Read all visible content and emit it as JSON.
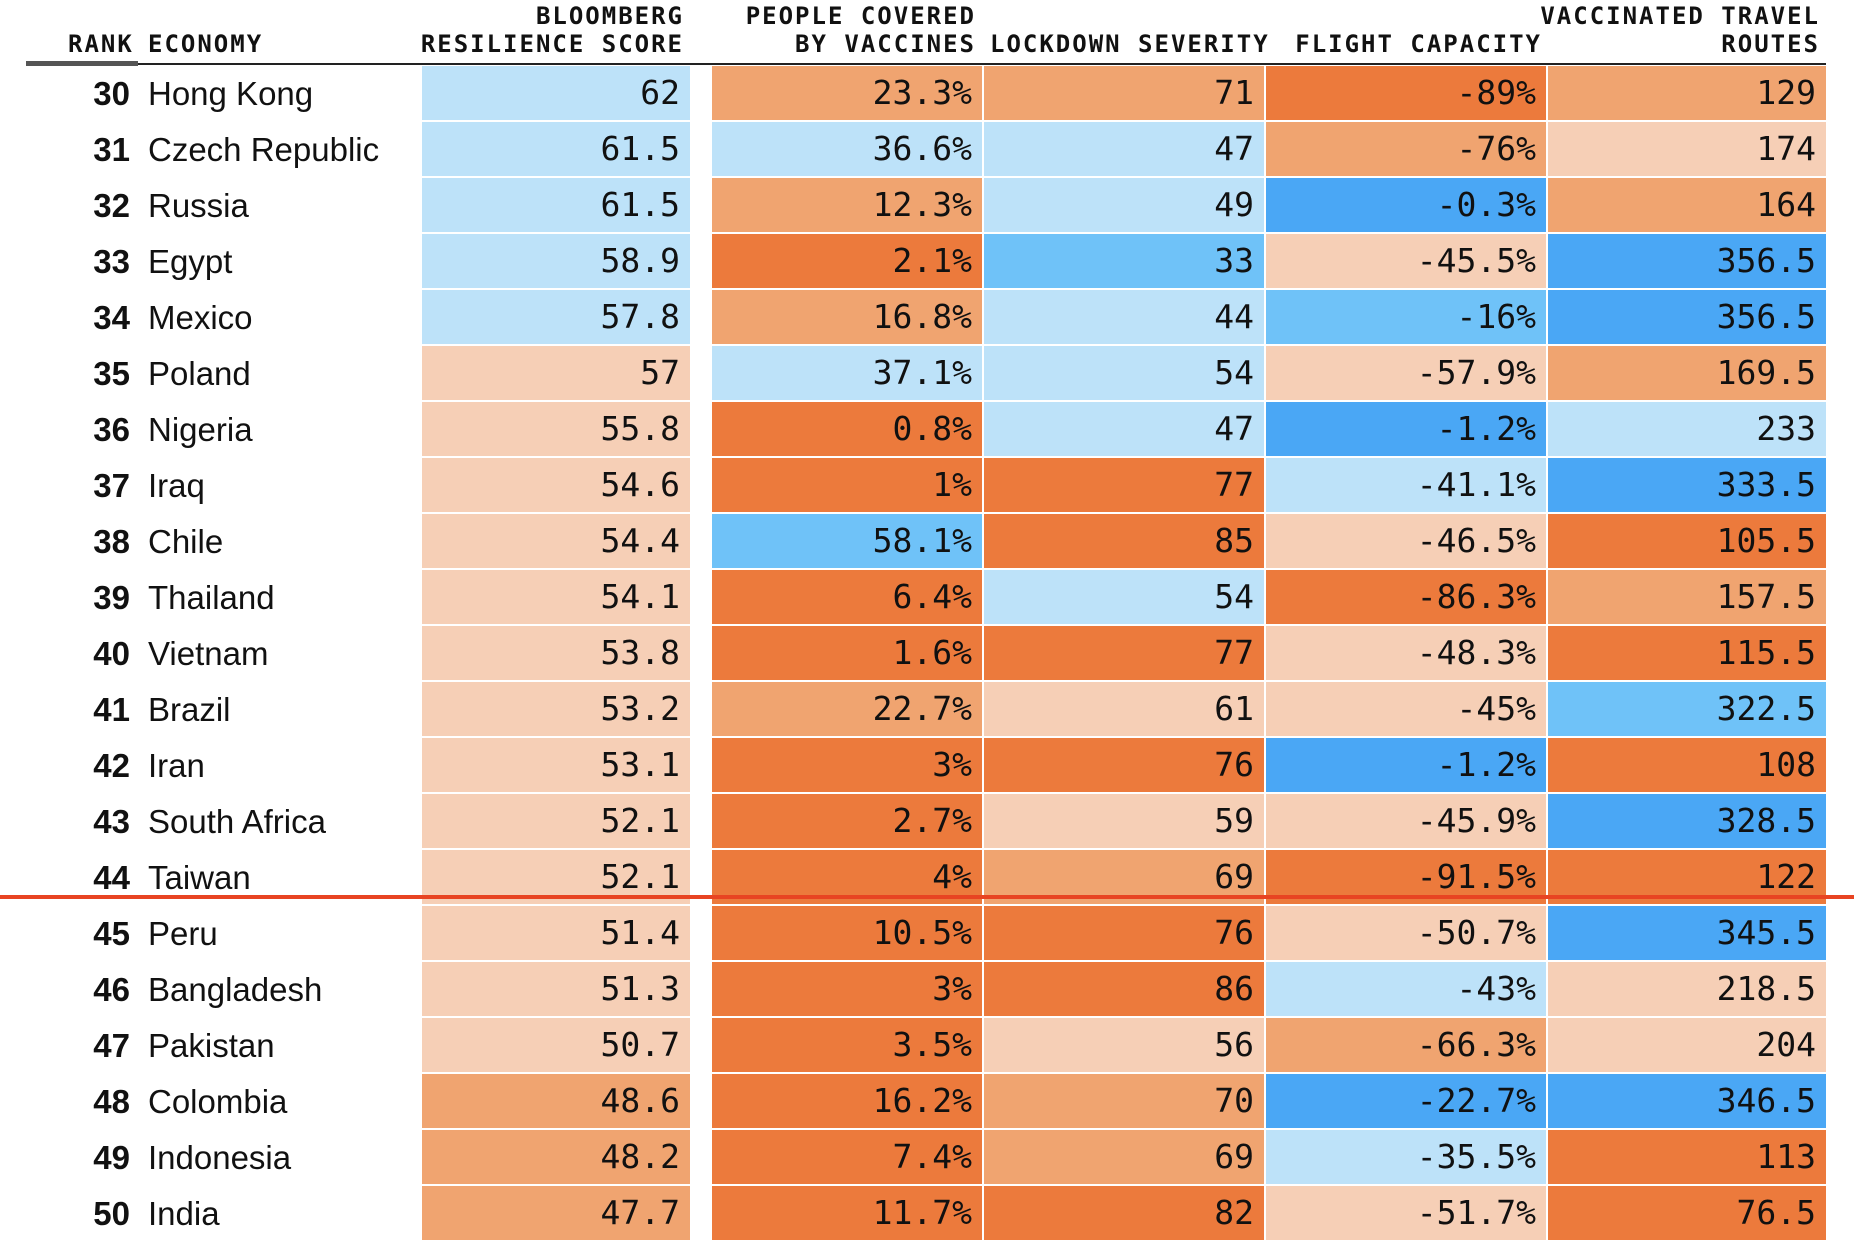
{
  "headers": {
    "rank": "RANK",
    "economy": "ECONOMY",
    "score": [
      "BLOOMBERG",
      "RESILIENCE SCORE"
    ],
    "vaccines": [
      "PEOPLE COVERED",
      "BY VACCINES"
    ],
    "lockdown": "LOCKDOWN SEVERITY",
    "flight": "FLIGHT CAPACITY",
    "routes": [
      "VACCINATED TRAVEL",
      "ROUTES"
    ]
  },
  "colors": {
    "light_blue": "#bde2f9",
    "mid_blue": "#6fc2f8",
    "strong_blue": "#4aa7f5",
    "light_orange": "#f6cfb6",
    "mid_orange": "#f0a470",
    "strong_orange": "#ec7a3c",
    "cutoff_line": "#e84422"
  },
  "chart_data": {
    "type": "table",
    "columns": [
      "RANK",
      "ECONOMY",
      "BLOOMBERG RESILIENCE SCORE",
      "PEOPLE COVERED BY VACCINES",
      "LOCKDOWN SEVERITY",
      "FLIGHT CAPACITY",
      "VACCINATED TRAVEL ROUTES"
    ],
    "rows": [
      {
        "rank": "30",
        "economy": "Hong Kong",
        "score": "62",
        "vaccines": "23.3%",
        "lockdown": "71",
        "flight": "-89%",
        "routes": "129",
        "shades": [
          "lb",
          "mo",
          "mo",
          "so",
          "mo"
        ]
      },
      {
        "rank": "31",
        "economy": "Czech Republic",
        "score": "61.5",
        "vaccines": "36.6%",
        "lockdown": "47",
        "flight": "-76%",
        "routes": "174",
        "shades": [
          "lb",
          "lb",
          "lb",
          "mo",
          "lo"
        ]
      },
      {
        "rank": "32",
        "economy": "Russia",
        "score": "61.5",
        "vaccines": "12.3%",
        "lockdown": "49",
        "flight": "-0.3%",
        "routes": "164",
        "shades": [
          "lb",
          "mo",
          "lb",
          "sb",
          "mo"
        ]
      },
      {
        "rank": "33",
        "economy": "Egypt",
        "score": "58.9",
        "vaccines": "2.1%",
        "lockdown": "33",
        "flight": "-45.5%",
        "routes": "356.5",
        "shades": [
          "lb",
          "so",
          "mb",
          "lo",
          "sb"
        ]
      },
      {
        "rank": "34",
        "economy": "Mexico",
        "score": "57.8",
        "vaccines": "16.8%",
        "lockdown": "44",
        "flight": "-16%",
        "routes": "356.5",
        "shades": [
          "lb",
          "mo",
          "lb",
          "mb",
          "sb"
        ]
      },
      {
        "rank": "35",
        "economy": "Poland",
        "score": "57",
        "vaccines": "37.1%",
        "lockdown": "54",
        "flight": "-57.9%",
        "routes": "169.5",
        "shades": [
          "lo",
          "lb",
          "lb",
          "lo",
          "mo"
        ]
      },
      {
        "rank": "36",
        "economy": "Nigeria",
        "score": "55.8",
        "vaccines": "0.8%",
        "lockdown": "47",
        "flight": "-1.2%",
        "routes": "233",
        "shades": [
          "lo",
          "so",
          "lb",
          "sb",
          "lb"
        ]
      },
      {
        "rank": "37",
        "economy": "Iraq",
        "score": "54.6",
        "vaccines": "1%",
        "lockdown": "77",
        "flight": "-41.1%",
        "routes": "333.5",
        "shades": [
          "lo",
          "so",
          "so",
          "lb",
          "sb"
        ]
      },
      {
        "rank": "38",
        "economy": "Chile",
        "score": "54.4",
        "vaccines": "58.1%",
        "lockdown": "85",
        "flight": "-46.5%",
        "routes": "105.5",
        "shades": [
          "lo",
          "mb",
          "so",
          "lo",
          "so"
        ]
      },
      {
        "rank": "39",
        "economy": "Thailand",
        "score": "54.1",
        "vaccines": "6.4%",
        "lockdown": "54",
        "flight": "-86.3%",
        "routes": "157.5",
        "shades": [
          "lo",
          "so",
          "lb",
          "so",
          "mo"
        ]
      },
      {
        "rank": "40",
        "economy": "Vietnam",
        "score": "53.8",
        "vaccines": "1.6%",
        "lockdown": "77",
        "flight": "-48.3%",
        "routes": "115.5",
        "shades": [
          "lo",
          "so",
          "so",
          "lo",
          "so"
        ]
      },
      {
        "rank": "41",
        "economy": "Brazil",
        "score": "53.2",
        "vaccines": "22.7%",
        "lockdown": "61",
        "flight": "-45%",
        "routes": "322.5",
        "shades": [
          "lo",
          "mo",
          "lo",
          "lo",
          "mb"
        ]
      },
      {
        "rank": "42",
        "economy": "Iran",
        "score": "53.1",
        "vaccines": "3%",
        "lockdown": "76",
        "flight": "-1.2%",
        "routes": "108",
        "shades": [
          "lo",
          "so",
          "so",
          "sb",
          "so"
        ]
      },
      {
        "rank": "43",
        "economy": "South Africa",
        "score": "52.1",
        "vaccines": "2.7%",
        "lockdown": "59",
        "flight": "-45.9%",
        "routes": "328.5",
        "shades": [
          "lo",
          "so",
          "lo",
          "lo",
          "sb"
        ]
      },
      {
        "rank": "44",
        "economy": "Taiwan",
        "score": "52.1",
        "vaccines": "4%",
        "lockdown": "69",
        "flight": "-91.5%",
        "routes": "122",
        "shades": [
          "lo",
          "so",
          "mo",
          "so",
          "so"
        ]
      },
      {
        "rank": "45",
        "economy": "Peru",
        "score": "51.4",
        "vaccines": "10.5%",
        "lockdown": "76",
        "flight": "-50.7%",
        "routes": "345.5",
        "shades": [
          "lo",
          "so",
          "so",
          "lo",
          "sb"
        ]
      },
      {
        "rank": "46",
        "economy": "Bangladesh",
        "score": "51.3",
        "vaccines": "3%",
        "lockdown": "86",
        "flight": "-43%",
        "routes": "218.5",
        "shades": [
          "lo",
          "so",
          "so",
          "lb",
          "lo"
        ]
      },
      {
        "rank": "47",
        "economy": "Pakistan",
        "score": "50.7",
        "vaccines": "3.5%",
        "lockdown": "56",
        "flight": "-66.3%",
        "routes": "204",
        "shades": [
          "lo",
          "so",
          "lo",
          "mo",
          "lo"
        ]
      },
      {
        "rank": "48",
        "economy": "Colombia",
        "score": "48.6",
        "vaccines": "16.2%",
        "lockdown": "70",
        "flight": "-22.7%",
        "routes": "346.5",
        "shades": [
          "mo",
          "so",
          "mo",
          "sb",
          "sb"
        ]
      },
      {
        "rank": "49",
        "economy": "Indonesia",
        "score": "48.2",
        "vaccines": "7.4%",
        "lockdown": "69",
        "flight": "-35.5%",
        "routes": "113",
        "shades": [
          "mo",
          "so",
          "mo",
          "lb",
          "so"
        ]
      },
      {
        "rank": "50",
        "economy": "India",
        "score": "47.7",
        "vaccines": "11.7%",
        "lockdown": "82",
        "flight": "-51.7%",
        "routes": "76.5",
        "shades": [
          "mo",
          "so",
          "so",
          "lo",
          "so"
        ]
      }
    ]
  }
}
